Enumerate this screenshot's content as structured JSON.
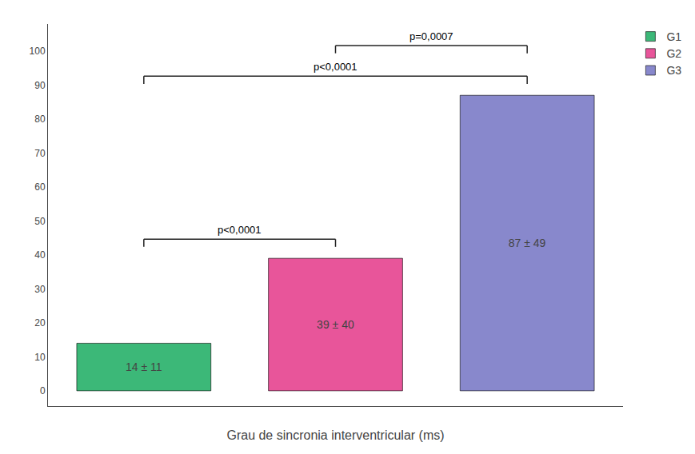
{
  "chart_data": {
    "type": "bar",
    "categories": [
      "G1",
      "G2",
      "G3"
    ],
    "values": [
      14,
      39,
      87
    ],
    "value_labels": [
      "14 ± 11",
      "39 ± 40",
      "87 ± 49"
    ],
    "colors": [
      "#3cb878",
      "#e8559a",
      "#8888cc"
    ],
    "data_labels": true,
    "xlabel": "Grau de sincronia interventricular (ms)",
    "ylim": [
      -4.5,
      108
    ],
    "yticks": [
      0,
      10,
      20,
      30,
      40,
      50,
      60,
      70,
      80,
      90,
      100
    ],
    "grid": false,
    "legend": "upper right",
    "tick_labels": "y",
    "annotations": [
      {
        "text": "p<0,0001",
        "categories": [
          "G1",
          "G2"
        ]
      },
      {
        "text": "p<0,0001",
        "categories": [
          "G1",
          "G3"
        ]
      },
      {
        "text": "p=0,0007",
        "categories": [
          "G2",
          "G3"
        ]
      }
    ]
  }
}
